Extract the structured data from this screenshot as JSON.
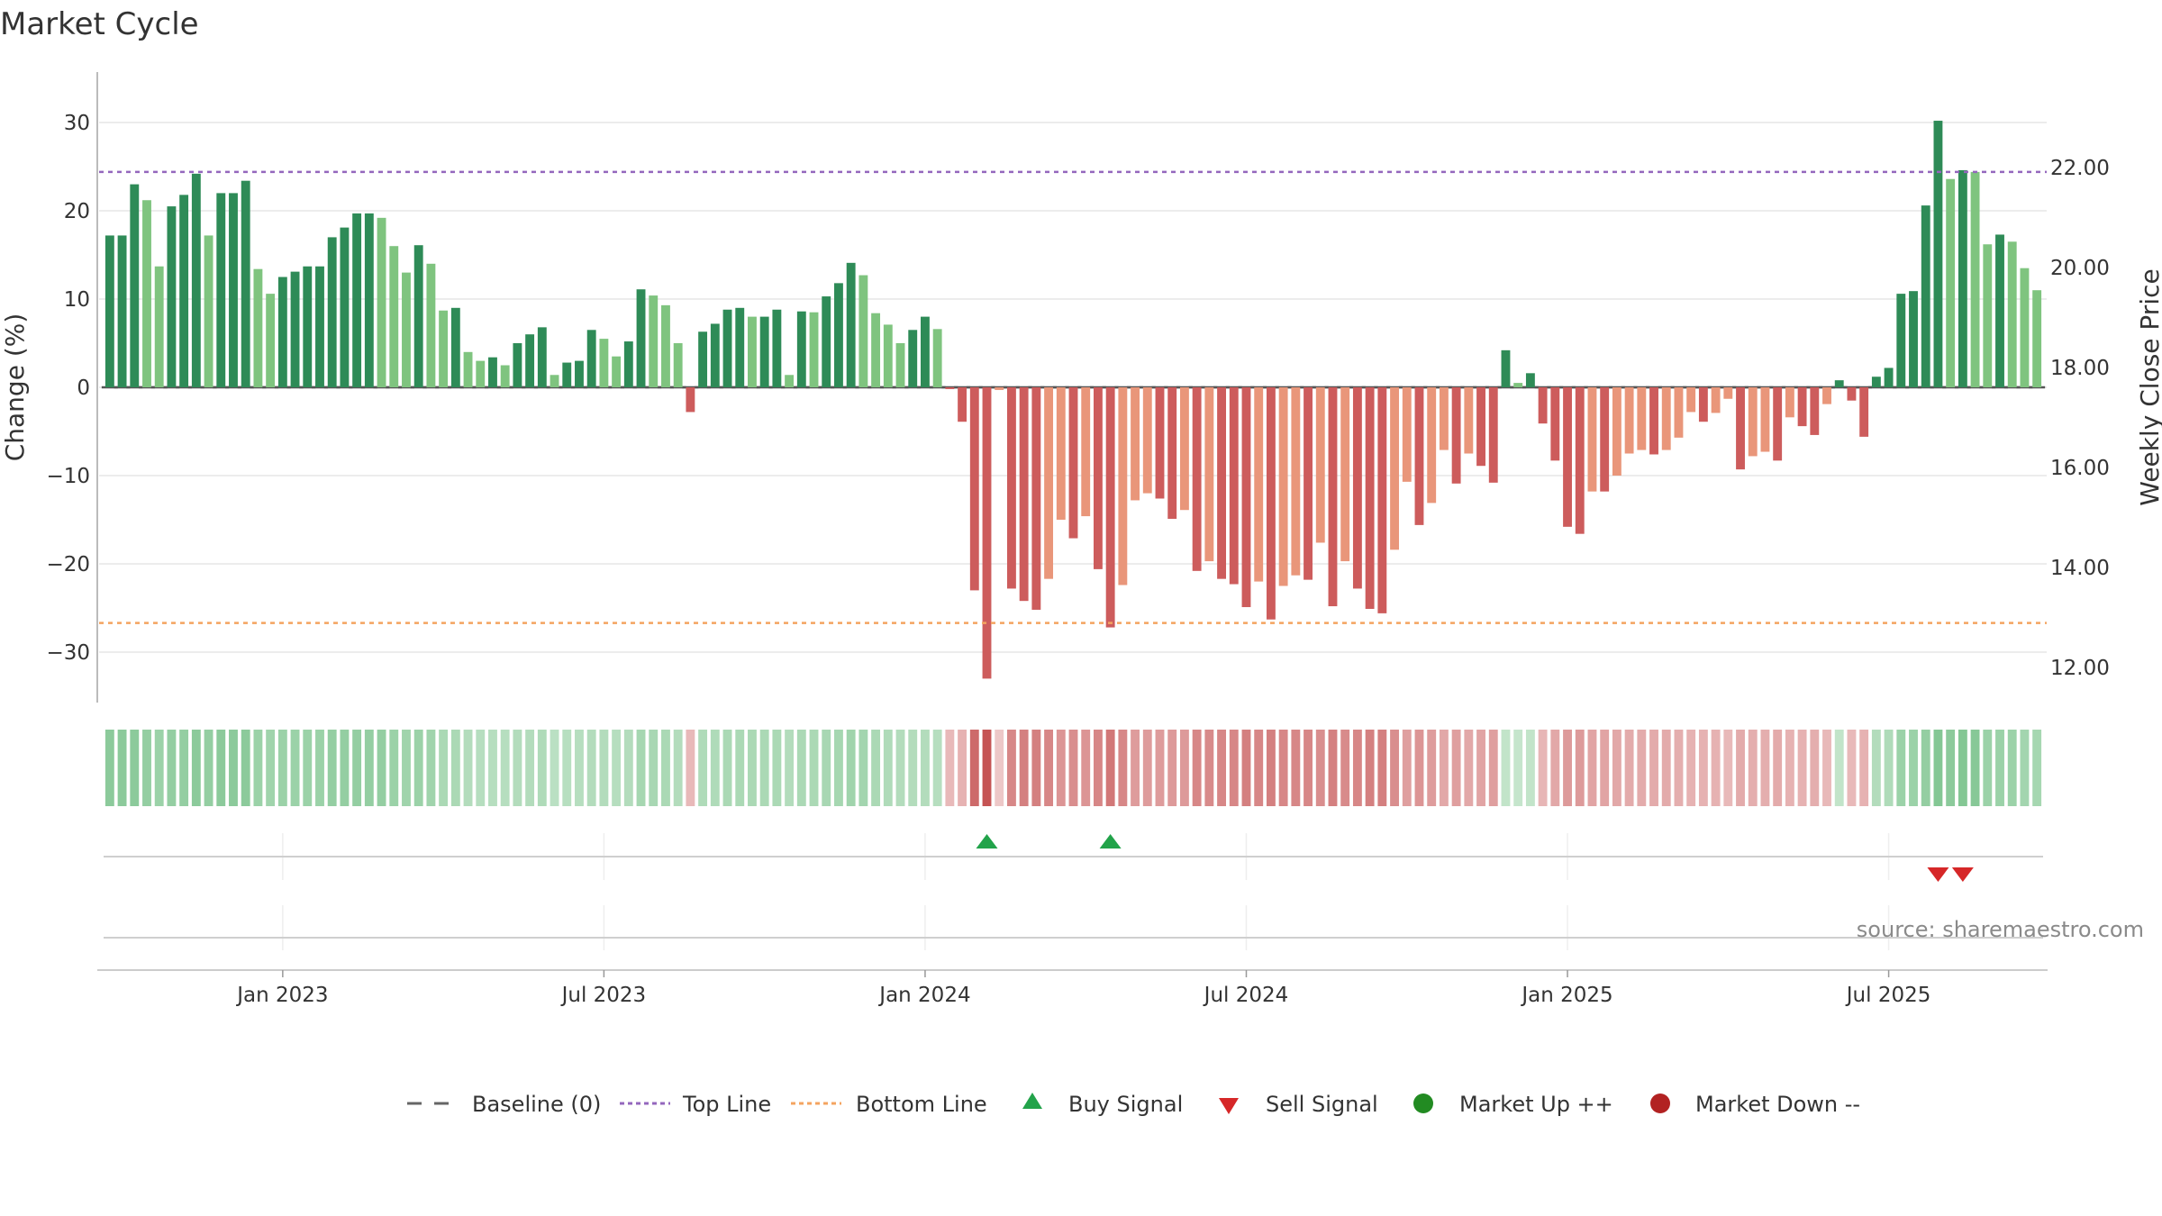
{
  "title": "Market Cycle",
  "source_text": "source: sharemaestro.com",
  "colors": {
    "up_strong": "#2e8b57",
    "up_light": "#7fc47f",
    "down_strong": "#cd5c5c",
    "down_light": "#e9967a",
    "top_line": "#9467bd",
    "bottom_line": "#f4a460",
    "buy": "#22a34a",
    "sell": "#d62728",
    "market_up": "#228b22",
    "market_down": "#b22222",
    "baseline": "#555555"
  },
  "chart_data": {
    "type": "bar",
    "title": "Market Cycle",
    "ylabel": "Change (%)",
    "ylabel_right": "Weekly Close Price",
    "ylim": [
      -35,
      36
    ],
    "y_ticks": [
      30,
      20,
      10,
      0,
      -10,
      -20,
      -30
    ],
    "y_tick_labels": [
      "30",
      "20",
      "10",
      "0",
      "−10",
      "−20",
      "−30"
    ],
    "y2_ticks": [
      22,
      20,
      18,
      16,
      14,
      12
    ],
    "y2_tick_labels": [
      "22.00",
      "20.00",
      "18.00",
      "16.00",
      "14.00",
      "12.00"
    ],
    "x_tick_labels": [
      "Jan 2023",
      "Jul 2023",
      "Jan 2024",
      "Jul 2024",
      "Jan 2025",
      "Jul 2025"
    ],
    "x_tick_index": [
      14,
      40,
      66,
      92,
      118,
      144
    ],
    "top_line": 24.4,
    "bottom_line": -26.7,
    "grid": true,
    "legend_position": "bottom",
    "series": [
      {
        "values": [
          17.2,
          17.2,
          23,
          21.2,
          13.7,
          20.5,
          21.8,
          24.2,
          17.2,
          22,
          22,
          23.4,
          13.4,
          10.6,
          12.5,
          13.1,
          13.7,
          13.7,
          17,
          18.1,
          19.7,
          19.7,
          19.2,
          16,
          13,
          16.1,
          14,
          8.7,
          9,
          4,
          3,
          3.4,
          2.5,
          5,
          6,
          6.8,
          1.4,
          2.8,
          3,
          6.5,
          5.5,
          3.5,
          5.2,
          11.1,
          10.4,
          9.3,
          5,
          -2.8,
          6.3,
          7.2,
          8.8,
          9,
          8,
          8,
          8.8,
          1.4,
          8.6,
          8.5,
          10.3,
          11.8,
          14.1,
          12.7,
          8.4,
          7.1,
          5,
          6.5,
          8,
          6.6,
          -0.2,
          -3.9,
          -23,
          -33,
          -0.3,
          -22.8,
          -24.2,
          -25.2,
          -21.7,
          -15,
          -17.1,
          -14.6,
          -20.6,
          -27.2,
          -22.4,
          -12.8,
          -12,
          -12.6,
          -14.9,
          -13.9,
          -20.8,
          -19.7,
          -21.7,
          -22.3,
          -24.9,
          -22,
          -26.3,
          -22.5,
          -21.3,
          -21.8,
          -17.6,
          -24.8,
          -19.7,
          -22.8,
          -25.1,
          -25.6,
          -18.4,
          -10.7,
          -15.6,
          -13.1,
          -7.1,
          -10.9,
          -7.5,
          -8.9,
          -10.8,
          4.2,
          0.5,
          1.6,
          -4.1,
          -8.3,
          -15.8,
          -16.6,
          -11.8,
          -11.8,
          -10,
          -7.5,
          -7.1,
          -7.6,
          -7.1,
          -5.7,
          -2.8,
          -3.9,
          -2.9,
          -1.3,
          -9.3,
          -7.8,
          -7.3,
          -8.3,
          -3.4,
          -4.4,
          -5.4,
          -1.9,
          0.8,
          -1.5,
          -5.6,
          1.2,
          2.2,
          10.6,
          10.9,
          20.6,
          30.2,
          23.6,
          24.6,
          24.4,
          16.2,
          17.3,
          16.5,
          13.5,
          11
        ]
      }
    ],
    "heat_intensity": [
      0.55,
      0.55,
      0.55,
      0.5,
      0.45,
      0.5,
      0.5,
      0.55,
      0.5,
      0.55,
      0.55,
      0.55,
      0.45,
      0.42,
      0.45,
      0.45,
      0.45,
      0.45,
      0.5,
      0.5,
      0.5,
      0.5,
      0.5,
      0.45,
      0.42,
      0.45,
      0.42,
      0.35,
      0.35,
      0.3,
      0.28,
      0.28,
      0.28,
      0.3,
      0.3,
      0.32,
      0.25,
      0.27,
      0.28,
      0.3,
      0.3,
      0.28,
      0.3,
      0.38,
      0.37,
      0.35,
      0.3,
      0.2,
      0.32,
      0.32,
      0.35,
      0.35,
      0.35,
      0.35,
      0.35,
      0.3,
      0.35,
      0.35,
      0.37,
      0.38,
      0.42,
      0.4,
      0.35,
      0.32,
      0.3,
      0.3,
      0.3,
      0.28,
      0.2,
      0.25,
      0.75,
      0.9,
      0.1,
      0.55,
      0.6,
      0.6,
      0.55,
      0.45,
      0.5,
      0.45,
      0.55,
      0.65,
      0.55,
      0.4,
      0.4,
      0.4,
      0.42,
      0.42,
      0.55,
      0.52,
      0.55,
      0.55,
      0.6,
      0.55,
      0.6,
      0.55,
      0.55,
      0.55,
      0.5,
      0.6,
      0.52,
      0.55,
      0.6,
      0.6,
      0.5,
      0.38,
      0.45,
      0.4,
      0.32,
      0.38,
      0.32,
      0.35,
      0.38,
      0.2,
      0.18,
      0.2,
      0.22,
      0.32,
      0.42,
      0.42,
      0.35,
      0.35,
      0.32,
      0.3,
      0.3,
      0.3,
      0.3,
      0.28,
      0.25,
      0.25,
      0.25,
      0.2,
      0.3,
      0.28,
      0.28,
      0.3,
      0.25,
      0.25,
      0.28,
      0.2,
      0.2,
      0.2,
      0.25,
      0.3,
      0.32,
      0.45,
      0.45,
      0.5,
      0.6,
      0.55,
      0.6,
      0.58,
      0.45,
      0.45,
      0.45,
      0.4,
      0.38
    ],
    "buy_signal_index": [
      71,
      81
    ],
    "sell_signal_index": [
      148,
      150
    ],
    "legend": [
      {
        "label": "Baseline (0)",
        "icon": "dash-line"
      },
      {
        "label": "Top Line",
        "icon": "dotted-line-purple"
      },
      {
        "label": "Bottom Line",
        "icon": "dotted-line-orange"
      },
      {
        "label": "Buy Signal",
        "icon": "triangle-up"
      },
      {
        "label": "Sell Signal",
        "icon": "triangle-down"
      },
      {
        "label": "Market Up ++",
        "icon": "circle-green"
      },
      {
        "label": "Market Down --",
        "icon": "circle-red"
      }
    ]
  }
}
